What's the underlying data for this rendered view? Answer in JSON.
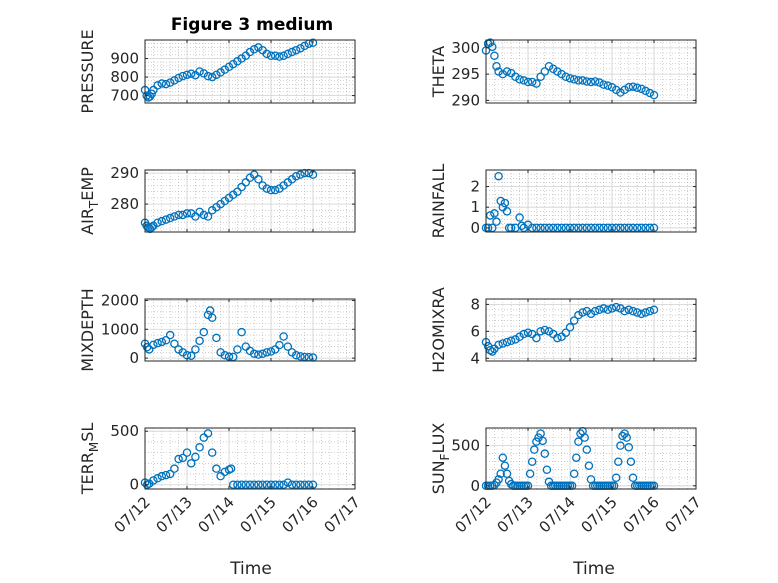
{
  "figure": {
    "title": "Figure 3 medium",
    "background": "#ffffff",
    "marker_color": "#0072BD",
    "grid_color": "#b0b0b0",
    "x_label_text": "Time"
  },
  "chart_data": [
    {
      "type": "scatter",
      "ylabel": "PRESSURE",
      "xlim": [
        0,
        5
      ],
      "ylim": [
        660,
        1000
      ],
      "yticks": [
        700,
        800,
        900
      ],
      "xticks": [
        0,
        1,
        2,
        3,
        4,
        5
      ],
      "xtick_labels": [
        "07/12",
        "07/13",
        "07/14",
        "07/15",
        "07/16",
        "07/17"
      ],
      "grid": true,
      "show_xtick_labels": false,
      "series": [
        {
          "x": [
            0.0,
            0.04,
            0.08,
            0.12,
            0.16,
            0.2,
            0.3,
            0.4,
            0.5,
            0.6,
            0.7,
            0.8,
            0.9,
            1.0,
            1.1,
            1.2,
            1.3,
            1.4,
            1.5,
            1.6,
            1.7,
            1.8,
            1.9,
            2.0,
            2.1,
            2.2,
            2.3,
            2.4,
            2.5,
            2.6,
            2.7,
            2.8,
            2.9,
            3.0,
            3.1,
            3.2,
            3.3,
            3.4,
            3.5,
            3.6,
            3.7,
            3.8,
            3.9,
            4.0
          ],
          "y": [
            730,
            700,
            690,
            695,
            710,
            730,
            755,
            765,
            762,
            770,
            782,
            795,
            805,
            812,
            818,
            810,
            830,
            820,
            805,
            800,
            812,
            825,
            840,
            855,
            870,
            885,
            900,
            915,
            935,
            950,
            960,
            945,
            925,
            915,
            915,
            910,
            915,
            925,
            935,
            945,
            955,
            968,
            980,
            985
          ]
        }
      ]
    },
    {
      "type": "scatter",
      "ylabel": "THETA",
      "xlim": [
        0,
        5
      ],
      "ylim": [
        289.5,
        301.5
      ],
      "yticks": [
        290,
        295,
        300
      ],
      "xticks": [
        0,
        1,
        2,
        3,
        4,
        5
      ],
      "xtick_labels": [
        "07/12",
        "07/13",
        "07/14",
        "07/15",
        "07/16",
        "07/17"
      ],
      "grid": true,
      "show_xtick_labels": false,
      "series": [
        {
          "x": [
            0.0,
            0.05,
            0.1,
            0.15,
            0.2,
            0.25,
            0.3,
            0.4,
            0.5,
            0.6,
            0.7,
            0.8,
            0.9,
            1.0,
            1.1,
            1.2,
            1.3,
            1.4,
            1.5,
            1.6,
            1.7,
            1.8,
            1.9,
            2.0,
            2.1,
            2.2,
            2.3,
            2.4,
            2.5,
            2.6,
            2.7,
            2.8,
            2.9,
            3.0,
            3.1,
            3.2,
            3.3,
            3.4,
            3.5,
            3.6,
            3.7,
            3.8,
            3.9,
            4.0
          ],
          "y": [
            299.5,
            300.8,
            301.0,
            300.2,
            298.5,
            296.5,
            295.5,
            295.0,
            295.5,
            295.2,
            294.5,
            294.0,
            293.8,
            293.5,
            293.5,
            293.2,
            294.5,
            295.5,
            296.5,
            296.0,
            295.5,
            295.0,
            294.5,
            294.2,
            294.0,
            293.8,
            293.8,
            293.6,
            293.5,
            293.6,
            293.4,
            293.0,
            292.8,
            292.5,
            292.0,
            291.5,
            292.0,
            292.5,
            292.6,
            292.4,
            292.2,
            291.8,
            291.4,
            291.0
          ]
        }
      ]
    },
    {
      "type": "scatter",
      "ylabel": "AIR_TEMP",
      "ylabel_sub": "T",
      "xlim": [
        0,
        5
      ],
      "ylim": [
        271,
        291
      ],
      "yticks": [
        280,
        290
      ],
      "xticks": [
        0,
        1,
        2,
        3,
        4,
        5
      ],
      "xtick_labels": [
        "07/12",
        "07/13",
        "07/14",
        "07/15",
        "07/16",
        "07/17"
      ],
      "grid": true,
      "show_xtick_labels": false,
      "series": [
        {
          "x": [
            0.0,
            0.04,
            0.08,
            0.12,
            0.16,
            0.2,
            0.3,
            0.4,
            0.5,
            0.6,
            0.7,
            0.8,
            0.9,
            1.0,
            1.1,
            1.2,
            1.3,
            1.4,
            1.5,
            1.6,
            1.7,
            1.8,
            1.9,
            2.0,
            2.1,
            2.2,
            2.3,
            2.4,
            2.5,
            2.6,
            2.7,
            2.8,
            2.9,
            3.0,
            3.1,
            3.2,
            3.3,
            3.4,
            3.5,
            3.6,
            3.7,
            3.8,
            3.9,
            4.0
          ],
          "y": [
            274,
            273,
            272.5,
            272,
            272.5,
            273,
            274,
            274.5,
            275,
            275.5,
            276,
            276.5,
            276.5,
            277,
            277,
            276,
            277.5,
            276.5,
            276,
            278,
            279,
            280,
            281,
            282,
            283,
            284,
            285.5,
            287,
            288.5,
            289.5,
            288,
            286,
            285,
            284.5,
            284.5,
            285,
            286,
            287,
            288,
            289,
            289.5,
            290,
            290,
            289.5
          ]
        }
      ]
    },
    {
      "type": "scatter",
      "ylabel": "RAINFALL",
      "xlim": [
        0,
        5
      ],
      "ylim": [
        -0.2,
        2.8
      ],
      "yticks": [
        0,
        1,
        2
      ],
      "xticks": [
        0,
        1,
        2,
        3,
        4,
        5
      ],
      "xtick_labels": [
        "07/12",
        "07/13",
        "07/14",
        "07/15",
        "07/16",
        "07/17"
      ],
      "grid": true,
      "show_xtick_labels": false,
      "series": [
        {
          "x": [
            0.0,
            0.05,
            0.1,
            0.15,
            0.2,
            0.25,
            0.3,
            0.35,
            0.4,
            0.45,
            0.5,
            0.55,
            0.6,
            0.7,
            0.8,
            0.85,
            0.9,
            1.0,
            1.1,
            1.2,
            1.3,
            1.4,
            1.5,
            1.6,
            1.7,
            1.8,
            1.9,
            2.0,
            2.1,
            2.2,
            2.3,
            2.4,
            2.5,
            2.6,
            2.7,
            2.8,
            2.9,
            3.0,
            3.1,
            3.2,
            3.3,
            3.4,
            3.5,
            3.6,
            3.7,
            3.8,
            3.9,
            4.0
          ],
          "y": [
            0,
            0,
            0.6,
            0,
            0.7,
            0.3,
            2.5,
            1.3,
            1.0,
            1.2,
            0.8,
            0,
            0,
            0,
            0.5,
            0.1,
            0,
            0.15,
            0,
            0,
            0,
            0,
            0,
            0,
            0,
            0,
            0,
            0,
            0,
            0,
            0,
            0,
            0,
            0,
            0,
            0,
            0,
            0,
            0,
            0,
            0,
            0,
            0,
            0,
            0,
            0,
            0,
            0
          ]
        }
      ]
    },
    {
      "type": "scatter",
      "ylabel": "MIXDEPTH",
      "xlim": [
        0,
        5
      ],
      "ylim": [
        -100,
        2050
      ],
      "yticks": [
        0,
        1000,
        2000
      ],
      "xticks": [
        0,
        1,
        2,
        3,
        4,
        5
      ],
      "xtick_labels": [
        "07/12",
        "07/13",
        "07/14",
        "07/15",
        "07/16",
        "07/17"
      ],
      "grid": true,
      "show_xtick_labels": false,
      "series": [
        {
          "x": [
            0.0,
            0.05,
            0.1,
            0.2,
            0.3,
            0.4,
            0.5,
            0.6,
            0.7,
            0.8,
            0.9,
            1.0,
            1.1,
            1.2,
            1.3,
            1.4,
            1.5,
            1.55,
            1.6,
            1.7,
            1.8,
            1.9,
            2.0,
            2.1,
            2.2,
            2.3,
            2.4,
            2.5,
            2.6,
            2.7,
            2.8,
            2.9,
            3.0,
            3.1,
            3.2,
            3.3,
            3.4,
            3.5,
            3.6,
            3.7,
            3.8,
            3.9,
            4.0
          ],
          "y": [
            500,
            380,
            300,
            460,
            520,
            560,
            620,
            800,
            500,
            300,
            200,
            100,
            80,
            300,
            600,
            900,
            1500,
            1650,
            1400,
            700,
            200,
            100,
            50,
            40,
            300,
            900,
            400,
            250,
            150,
            120,
            150,
            200,
            230,
            300,
            450,
            750,
            400,
            200,
            100,
            60,
            40,
            30,
            20
          ]
        }
      ]
    },
    {
      "type": "scatter",
      "ylabel": "H2OMIXRA",
      "xlim": [
        0,
        5
      ],
      "ylim": [
        3.8,
        8.4
      ],
      "yticks": [
        4,
        6,
        8
      ],
      "xticks": [
        0,
        1,
        2,
        3,
        4,
        5
      ],
      "xtick_labels": [
        "07/12",
        "07/13",
        "07/14",
        "07/15",
        "07/16",
        "07/17"
      ],
      "grid": true,
      "show_xtick_labels": false,
      "series": [
        {
          "x": [
            0.0,
            0.05,
            0.1,
            0.15,
            0.2,
            0.3,
            0.4,
            0.5,
            0.6,
            0.7,
            0.8,
            0.9,
            1.0,
            1.1,
            1.2,
            1.3,
            1.4,
            1.5,
            1.6,
            1.7,
            1.8,
            1.9,
            2.0,
            2.1,
            2.2,
            2.3,
            2.4,
            2.5,
            2.6,
            2.7,
            2.8,
            2.9,
            3.0,
            3.1,
            3.2,
            3.3,
            3.4,
            3.5,
            3.6,
            3.7,
            3.8,
            3.9,
            4.0
          ],
          "y": [
            5.2,
            4.9,
            4.6,
            4.5,
            4.7,
            5.0,
            5.1,
            5.2,
            5.3,
            5.4,
            5.6,
            5.8,
            5.9,
            5.8,
            5.5,
            6.0,
            6.1,
            6.0,
            5.8,
            5.5,
            5.6,
            5.9,
            6.3,
            6.8,
            7.2,
            7.4,
            7.5,
            7.3,
            7.5,
            7.6,
            7.7,
            7.6,
            7.7,
            7.8,
            7.7,
            7.5,
            7.6,
            7.5,
            7.4,
            7.3,
            7.4,
            7.5,
            7.6
          ]
        }
      ]
    },
    {
      "type": "scatter",
      "ylabel": "TERR_MSL",
      "ylabel_sub": "M",
      "xlim": [
        0,
        5
      ],
      "ylim": [
        -40,
        530
      ],
      "yticks": [
        0,
        500
      ],
      "xticks": [
        0,
        1,
        2,
        3,
        4,
        5
      ],
      "xtick_labels": [
        "07/12",
        "07/13",
        "07/14",
        "07/15",
        "07/16",
        "07/17"
      ],
      "grid": true,
      "show_xtick_labels": true,
      "series": [
        {
          "x": [
            0.0,
            0.05,
            0.1,
            0.2,
            0.3,
            0.4,
            0.5,
            0.6,
            0.7,
            0.8,
            0.9,
            1.0,
            1.1,
            1.2,
            1.3,
            1.4,
            1.5,
            1.6,
            1.7,
            1.8,
            1.9,
            2.0,
            2.05,
            2.1,
            2.2,
            2.3,
            2.4,
            2.5,
            2.6,
            2.7,
            2.8,
            2.9,
            3.0,
            3.1,
            3.2,
            3.3,
            3.4,
            3.5,
            3.6,
            3.7,
            3.8,
            3.9,
            4.0
          ],
          "y": [
            20,
            0,
            10,
            40,
            60,
            80,
            90,
            100,
            150,
            240,
            250,
            300,
            200,
            260,
            350,
            440,
            480,
            300,
            150,
            80,
            120,
            140,
            150,
            0,
            0,
            0,
            0,
            0,
            0,
            0,
            0,
            0,
            0,
            0,
            0,
            0,
            20,
            0,
            0,
            0,
            0,
            0,
            0
          ]
        }
      ]
    },
    {
      "type": "scatter",
      "ylabel": "SUN_FLUX",
      "ylabel_sub": "F",
      "xlim": [
        0,
        5
      ],
      "ylim": [
        -40,
        720
      ],
      "yticks": [
        0,
        500
      ],
      "xticks": [
        0,
        1,
        2,
        3,
        4,
        5
      ],
      "xtick_labels": [
        "07/12",
        "07/13",
        "07/14",
        "07/15",
        "07/16",
        "07/17"
      ],
      "grid": true,
      "show_xtick_labels": true,
      "series": [
        {
          "x": [
            0.0,
            0.05,
            0.1,
            0.15,
            0.2,
            0.25,
            0.3,
            0.35,
            0.4,
            0.45,
            0.5,
            0.55,
            0.6,
            0.65,
            0.7,
            0.75,
            0.8,
            0.85,
            0.9,
            0.95,
            1.0,
            1.05,
            1.1,
            1.15,
            1.2,
            1.25,
            1.3,
            1.35,
            1.4,
            1.45,
            1.5,
            1.55,
            1.6,
            1.65,
            1.7,
            1.75,
            1.8,
            1.85,
            1.9,
            1.95,
            2.0,
            2.05,
            2.1,
            2.15,
            2.2,
            2.25,
            2.3,
            2.35,
            2.4,
            2.45,
            2.5,
            2.55,
            2.6,
            2.65,
            2.7,
            2.75,
            2.8,
            2.85,
            2.9,
            2.95,
            3.0,
            3.05,
            3.1,
            3.15,
            3.2,
            3.25,
            3.3,
            3.35,
            3.4,
            3.45,
            3.5,
            3.55,
            3.6,
            3.65,
            3.7,
            3.75,
            3.8,
            3.85,
            3.9,
            3.95,
            4.0
          ],
          "y": [
            0,
            0,
            0,
            0,
            10,
            40,
            80,
            150,
            350,
            250,
            150,
            60,
            20,
            0,
            0,
            0,
            0,
            0,
            0,
            0,
            0,
            150,
            300,
            450,
            550,
            600,
            650,
            560,
            400,
            200,
            50,
            0,
            0,
            0,
            0,
            0,
            0,
            0,
            0,
            0,
            0,
            0,
            150,
            350,
            550,
            650,
            680,
            600,
            450,
            250,
            80,
            0,
            0,
            0,
            0,
            0,
            0,
            0,
            0,
            0,
            0,
            0,
            100,
            300,
            500,
            620,
            650,
            600,
            480,
            300,
            100,
            0,
            0,
            0,
            0,
            0,
            0,
            0,
            0,
            0,
            0
          ]
        }
      ]
    }
  ]
}
